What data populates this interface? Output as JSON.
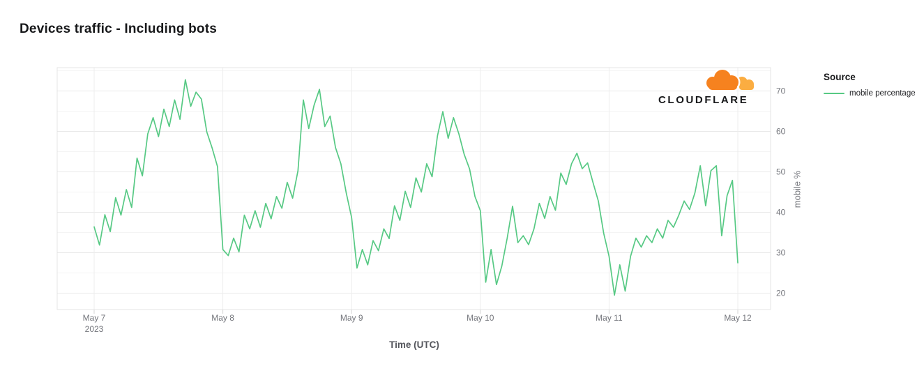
{
  "logo": {
    "text": "CLOUDFLARE",
    "cloud_orange": "#F6821F",
    "cloud_light": "#FBAD41"
  },
  "legend": {
    "title": "Source"
  },
  "chart_data": {
    "type": "line",
    "title": "Devices traffic - Including bots",
    "xlabel": "Time (UTC)",
    "ylabel": "mobile %",
    "x_tick_labels": [
      "May 7",
      "May 8",
      "May 9",
      "May 10",
      "May 11",
      "May 12"
    ],
    "x_first_tick_year": "2023",
    "x_unit": "hours since 2023-05-07 00:00 UTC, one point per hour",
    "y_ticks": [
      20,
      30,
      40,
      50,
      60,
      70
    ],
    "y_minor_ticks": [
      25,
      35,
      45,
      55,
      65,
      75
    ],
    "ylim": [
      16,
      76
    ],
    "grid": true,
    "legend_position": "right",
    "series": [
      {
        "name": "mobile percentage",
        "color": "#57c984",
        "x_step_hours": 1,
        "values": [
          36.4,
          31.9,
          39.4,
          35.2,
          43.6,
          39.3,
          45.6,
          41.2,
          53.4,
          49,
          59.4,
          63.4,
          58.7,
          65.5,
          61.2,
          67.8,
          63,
          72.8,
          66.2,
          69.7,
          68,
          59.9,
          55.9,
          51.3,
          30.8,
          29.3,
          33.6,
          30.2,
          39.3,
          35.9,
          40.4,
          36.3,
          42.2,
          38.4,
          43.9,
          41,
          47.4,
          43.5,
          50.3,
          67.8,
          60.7,
          66.5,
          70.4,
          61.2,
          63.8,
          56,
          52,
          44.8,
          38.7,
          26.2,
          30.8,
          27,
          33,
          30.5,
          35.9,
          33.5,
          41.6,
          38,
          45.2,
          41.2,
          48.5,
          45,
          52,
          48.8,
          58.9,
          64.9,
          58.3,
          63.4,
          59.4,
          54.3,
          50.7,
          43.9,
          40.4,
          22.7,
          30.8,
          22.1,
          26.7,
          33.6,
          41.5,
          32.5,
          34.2,
          32,
          35.9,
          42.2,
          38.5,
          43.9,
          40.5,
          49.7,
          46.9,
          52,
          54.6,
          50.8,
          52.2,
          47.4,
          42.8,
          34.8,
          29.1,
          19.5,
          27,
          20.5,
          29.1,
          33.6,
          31.4,
          34.2,
          32.5,
          35.9,
          33.6,
          38,
          36.3,
          39.3,
          42.8,
          40.7,
          44.8,
          51.5,
          41.6,
          50.3,
          51.5,
          34.2,
          44.1,
          47.9,
          27.5
        ]
      }
    ]
  }
}
